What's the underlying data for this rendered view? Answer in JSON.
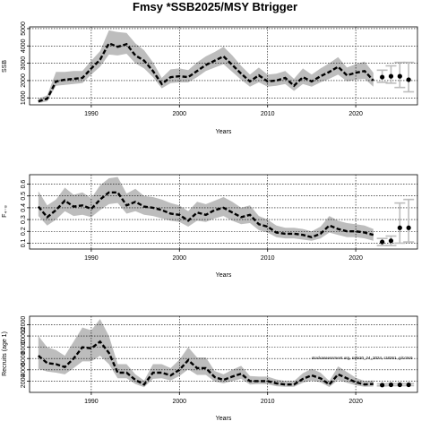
{
  "figure": {
    "title": "Fmsy *SSB2025/MSY Btrigger",
    "annotation": "stockassessment.org, sole20_24_2024, r18261, git:c9c6"
  },
  "chart_data": [
    {
      "type": "line",
      "ylabel": "SSB",
      "xlabel": "Years",
      "xlim": [
        1983,
        2027
      ],
      "ylim": [
        600,
        5100
      ],
      "xticks": [
        1990,
        2000,
        2010,
        2020
      ],
      "yticks": [
        1000,
        2000,
        3000,
        4000,
        5000
      ],
      "grid": true,
      "x": [
        1984,
        1985,
        1986,
        1987,
        1988,
        1989,
        1990,
        1991,
        1992,
        1993,
        1994,
        1995,
        1996,
        1997,
        1998,
        1999,
        2000,
        2001,
        2002,
        2003,
        2004,
        2005,
        2006,
        2007,
        2008,
        2009,
        2010,
        2011,
        2012,
        2013,
        2014,
        2015,
        2016,
        2017,
        2018,
        2019,
        2020,
        2021,
        2022
      ],
      "estimate": [
        800,
        950,
        1950,
        2050,
        2100,
        2150,
        2700,
        3200,
        4150,
        3950,
        4100,
        3450,
        3150,
        2550,
        1800,
        2200,
        2250,
        2200,
        2550,
        2900,
        3150,
        3400,
        2900,
        2400,
        1950,
        2300,
        1950,
        2000,
        2150,
        1700,
        2200,
        1950,
        2250,
        2500,
        2800,
        2300,
        2450,
        2550,
        2000
      ],
      "lower": [
        700,
        800,
        1700,
        1750,
        1800,
        1850,
        2350,
        2800,
        3500,
        3450,
        3550,
        3000,
        2700,
        2200,
        1550,
        1850,
        1900,
        1900,
        2200,
        2550,
        2750,
        2950,
        2500,
        2050,
        1650,
        1900,
        1650,
        1700,
        1800,
        1400,
        1800,
        1650,
        1900,
        2100,
        2350,
        1950,
        2050,
        2100,
        1650
      ],
      "upper": [
        950,
        1150,
        2500,
        2500,
        2550,
        2550,
        3150,
        3700,
        4900,
        4800,
        4750,
        4150,
        3750,
        3050,
        2150,
        2650,
        2700,
        2600,
        3050,
        3400,
        3650,
        3950,
        3450,
        2850,
        2350,
        2750,
        2350,
        2400,
        2550,
        2100,
        2700,
        2350,
        2700,
        3000,
        3350,
        2750,
        2950,
        3100,
        2450
      ],
      "forecast": {
        "x": [
          2023,
          2024,
          2025,
          2026
        ],
        "median": [
          2200,
          2250,
          2250,
          2050
        ],
        "low": [
          1900,
          1850,
          1600,
          1350
        ],
        "high": [
          2600,
          2850,
          3050,
          3050
        ]
      }
    },
    {
      "type": "line",
      "ylabel": "F₄₋₈",
      "xlabel": "Years",
      "xlim": [
        1983,
        2027
      ],
      "ylim": [
        0.05,
        0.68
      ],
      "xticks": [
        1990,
        2000,
        2010,
        2020
      ],
      "yticks": [
        0.1,
        0.2,
        0.3,
        0.4,
        0.5,
        0.6
      ],
      "ytick_labels": [
        "0.1",
        "0.2",
        "0.3",
        "0.4",
        "0.5",
        "0.6"
      ],
      "grid": true,
      "x": [
        1984,
        1985,
        1986,
        1987,
        1988,
        1989,
        1990,
        1991,
        1992,
        1993,
        1994,
        1995,
        1996,
        1997,
        1998,
        1999,
        2000,
        2001,
        2002,
        2003,
        2004,
        2005,
        2006,
        2007,
        2008,
        2009,
        2010,
        2011,
        2012,
        2013,
        2014,
        2015,
        2016,
        2017,
        2018,
        2019,
        2020,
        2021,
        2022
      ],
      "estimate": [
        0.41,
        0.32,
        0.38,
        0.46,
        0.41,
        0.42,
        0.39,
        0.47,
        0.53,
        0.53,
        0.42,
        0.45,
        0.41,
        0.4,
        0.38,
        0.35,
        0.34,
        0.29,
        0.36,
        0.34,
        0.38,
        0.4,
        0.36,
        0.32,
        0.34,
        0.26,
        0.24,
        0.19,
        0.18,
        0.18,
        0.17,
        0.15,
        0.18,
        0.25,
        0.22,
        0.2,
        0.2,
        0.19,
        0.17
      ],
      "lower": [
        0.33,
        0.25,
        0.3,
        0.37,
        0.33,
        0.34,
        0.32,
        0.38,
        0.43,
        0.44,
        0.35,
        0.37,
        0.34,
        0.33,
        0.31,
        0.29,
        0.28,
        0.24,
        0.29,
        0.28,
        0.31,
        0.33,
        0.29,
        0.26,
        0.27,
        0.21,
        0.19,
        0.15,
        0.14,
        0.14,
        0.13,
        0.12,
        0.14,
        0.19,
        0.17,
        0.15,
        0.15,
        0.14,
        0.12
      ],
      "upper": [
        0.54,
        0.42,
        0.47,
        0.57,
        0.51,
        0.53,
        0.48,
        0.59,
        0.65,
        0.66,
        0.52,
        0.56,
        0.5,
        0.49,
        0.47,
        0.44,
        0.42,
        0.37,
        0.45,
        0.43,
        0.46,
        0.49,
        0.45,
        0.4,
        0.42,
        0.33,
        0.3,
        0.25,
        0.23,
        0.23,
        0.22,
        0.2,
        0.24,
        0.33,
        0.29,
        0.27,
        0.26,
        0.25,
        0.22
      ],
      "forecast": {
        "x": [
          2023,
          2024,
          2025,
          2026
        ],
        "median": [
          0.11,
          0.12,
          0.23,
          0.23
        ],
        "low": [
          0.08,
          0.08,
          0.1,
          0.11
        ],
        "high": [
          0.14,
          0.16,
          0.44,
          0.47
        ]
      }
    },
    {
      "type": "line",
      "ylabel": "Recruits (age 1)",
      "xlabel": "Years",
      "xlim": [
        1983,
        2027
      ],
      "ylim": [
        0,
        13500
      ],
      "xticks": [
        1990,
        2000,
        2010,
        2020
      ],
      "yticks": [
        2000,
        4000,
        6000,
        8000,
        10000,
        12000
      ],
      "grid": true,
      "x": [
        1984,
        1985,
        1986,
        1987,
        1988,
        1989,
        1990,
        1991,
        1992,
        1993,
        1994,
        1995,
        1996,
        1997,
        1998,
        1999,
        2000,
        2001,
        2002,
        2003,
        2004,
        2005,
        2006,
        2007,
        2008,
        2009,
        2010,
        2011,
        2012,
        2013,
        2014,
        2015,
        2016,
        2017,
        2018,
        2019,
        2020,
        2021,
        2022
      ],
      "estimate": [
        6500,
        5200,
        5000,
        4500,
        6000,
        8000,
        7800,
        9000,
        7000,
        3500,
        3500,
        2200,
        1400,
        3500,
        3500,
        3000,
        4000,
        5700,
        4300,
        4300,
        2700,
        2200,
        2800,
        3300,
        2000,
        2000,
        2000,
        1600,
        1400,
        1400,
        2400,
        3000,
        2500,
        1400,
        3200,
        2500,
        1800,
        1400,
        1500
      ],
      "lower": [
        4200,
        3700,
        3500,
        3200,
        4300,
        5500,
        5500,
        6500,
        5000,
        2500,
        2500,
        1500,
        900,
        2400,
        2500,
        2100,
        2900,
        4100,
        3100,
        3100,
        1900,
        1600,
        2000,
        2400,
        1400,
        1500,
        1450,
        1100,
        1000,
        1000,
        1700,
        2100,
        1800,
        950,
        2200,
        1700,
        1250,
        1000,
        1050
      ],
      "upper": [
        10000,
        8000,
        7500,
        6500,
        9000,
        11500,
        11000,
        13000,
        10000,
        5000,
        5000,
        3200,
        2100,
        5000,
        5000,
        4300,
        5800,
        8000,
        6200,
        6200,
        3800,
        3200,
        4000,
        4700,
        2900,
        2800,
        2800,
        2300,
        2000,
        2000,
        3400,
        4200,
        3500,
        2000,
        4600,
        3600,
        2600,
        2000,
        2100
      ],
      "forecast": {
        "x": [
          2023,
          2024,
          2025,
          2026
        ],
        "median": [
          1300,
          1350,
          1350,
          1350
        ],
        "low": [
          1150,
          1200,
          1200,
          1200
        ],
        "high": [
          1500,
          1550,
          1550,
          1550
        ]
      }
    }
  ]
}
